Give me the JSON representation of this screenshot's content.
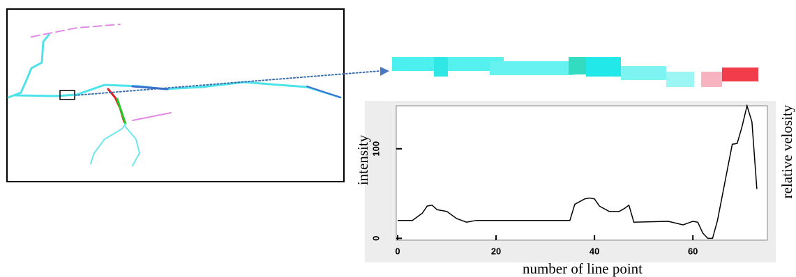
{
  "chart_data": {
    "type": "line",
    "x_label": "number of line point",
    "y_label": "intensity",
    "y2_label": "relative velosity",
    "x": [
      0,
      3,
      5,
      6,
      7,
      8,
      10,
      12,
      14,
      16,
      20,
      30,
      35,
      36,
      38,
      39,
      40,
      41,
      43,
      45,
      46,
      47,
      48,
      55,
      58,
      60,
      61,
      62,
      63,
      64,
      65,
      68,
      69,
      70,
      71,
      72,
      73
    ],
    "series": [
      {
        "name": "intensity",
        "color": "#000000",
        "values": [
          20,
          20,
          28,
          36,
          37,
          32,
          30,
          22,
          18,
          20,
          20,
          20,
          20,
          38,
          44,
          45,
          44,
          36,
          30,
          30,
          33,
          37,
          18,
          19,
          15,
          19,
          18,
          6,
          0,
          0,
          20,
          105,
          106,
          125,
          148,
          130,
          55
        ]
      }
    ],
    "xlim": [
      0,
      75
    ],
    "ylim": [
      -2,
      148
    ],
    "xticks": [
      0,
      20,
      40,
      60
    ],
    "yticks": [
      0,
      100
    ]
  }
}
